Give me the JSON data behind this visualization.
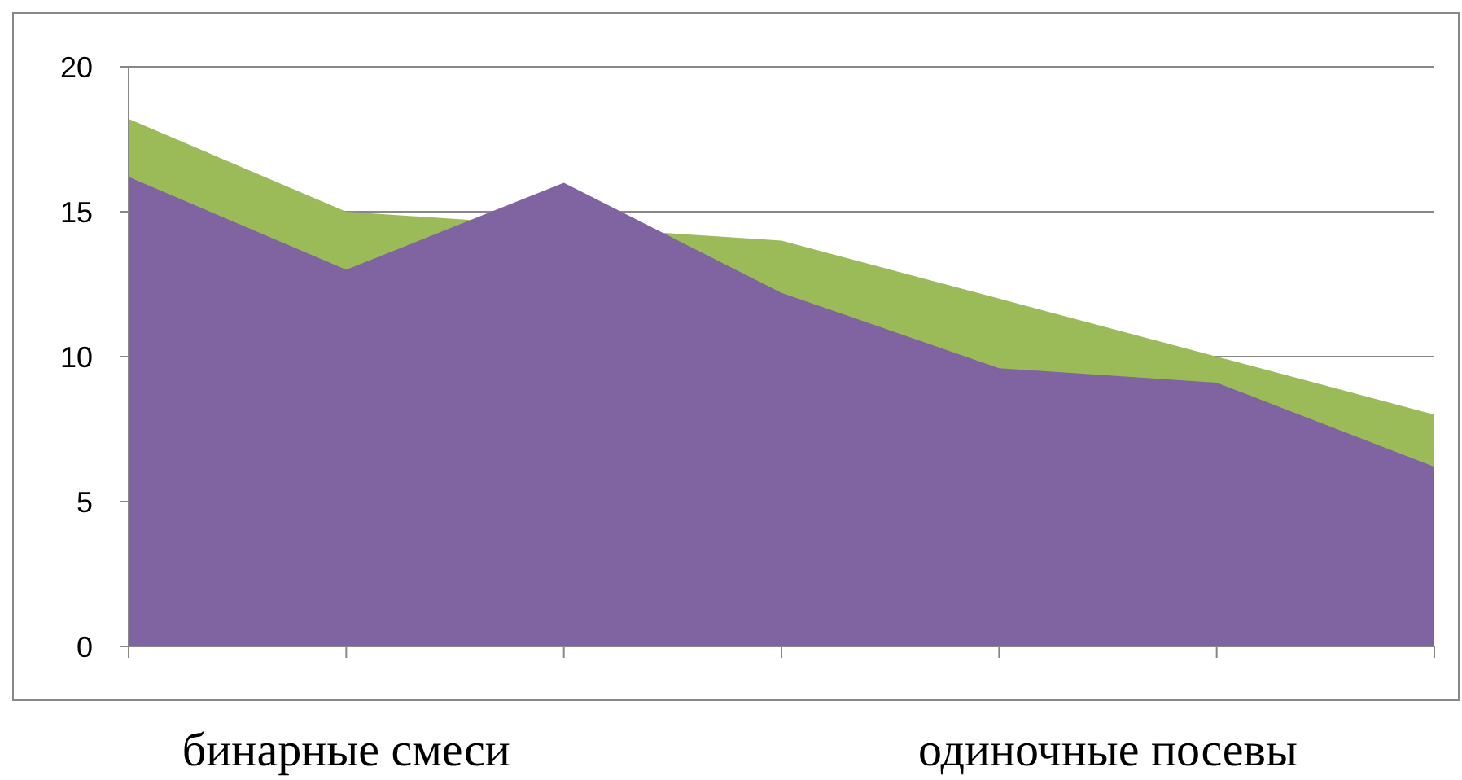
{
  "chart_data": {
    "type": "area",
    "categories": [
      null,
      null,
      null,
      null,
      null,
      null,
      null
    ],
    "series": [
      {
        "color": "#9bbb59",
        "values": [
          18.2,
          15,
          null,
          14,
          12,
          10,
          8
        ]
      },
      {
        "color": "#8064a2",
        "values": [
          16.2,
          13,
          16,
          12.2,
          9.6,
          9.1,
          6.2
        ]
      }
    ],
    "ylim": [
      0,
      20
    ],
    "yticks": [
      0,
      5,
      10,
      15,
      20
    ],
    "grid": "y",
    "annotations": [
      "бинарные смеси",
      "одиночные посевы"
    ]
  }
}
